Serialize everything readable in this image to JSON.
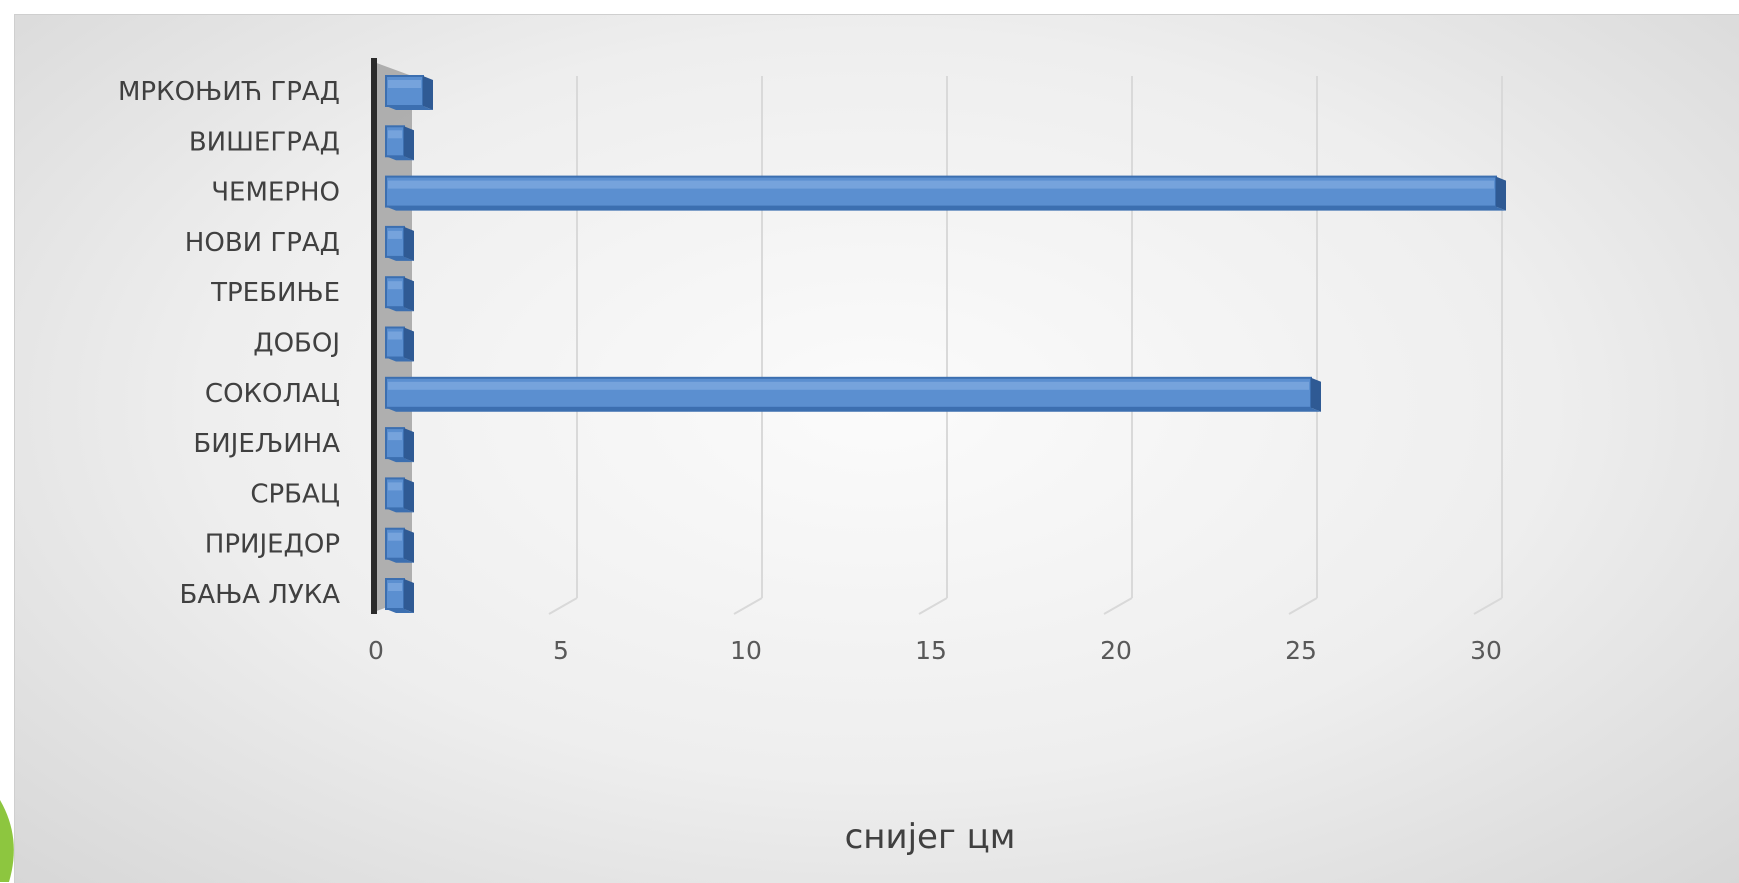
{
  "colors": {
    "bar_front": "#5b8fd0",
    "bar_top": "#3c6fb0",
    "bar_side": "#2f5a94",
    "wall": "#a3a3a3",
    "gridline": "#d9d9d9",
    "axis": "#2b2b2b",
    "accent": "#8dc63f"
  },
  "chart_data": {
    "type": "bar",
    "orientation": "horizontal",
    "style": "3d",
    "title": "",
    "xlabel": "снијег цм",
    "ylabel": "",
    "xlim": [
      0,
      30
    ],
    "xticks": [
      "0",
      "5",
      "10",
      "15",
      "20",
      "25",
      "30"
    ],
    "grid": true,
    "legend": "none",
    "categories": [
      "МРКОЊИЋ ГРАД",
      "ВИШЕГРАД",
      "ЧЕМЕРНО",
      "НОВИ ГРАД",
      "ТРЕБИЊЕ",
      "ДОБОЈ",
      "СОКОЛАЦ",
      "БИЈЕЉИНА",
      "СРБАЦ",
      "ПРИЈЕДОР",
      "БАЊА ЛУКА"
    ],
    "values": [
      1,
      0,
      30,
      0,
      0,
      0,
      25,
      0,
      0,
      0,
      0
    ]
  }
}
